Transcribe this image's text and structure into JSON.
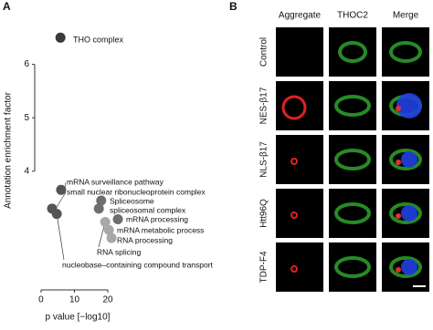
{
  "panel_labels": [
    "A",
    "B"
  ],
  "chart_data": {
    "type": "scatter",
    "x_label": "p value [−log10]",
    "y_label": "Annotation enrichment factor",
    "labels": [
      "THO complex",
      "mRNA surveillance pathway",
      "small nuclear ribonucleoprotein complex",
      "Spliceosome",
      "spliceosomal complex",
      "mRNA processing",
      "RNA splicing",
      "mRNA metabolic process",
      "RNA processing",
      "nucleobase–containing compound transport"
    ],
    "x": [
      5.8,
      6,
      3.3,
      18,
      17.3,
      23,
      19.2,
      20.3,
      21.1,
      4.7
    ],
    "values": [
      6.5,
      3.65,
      3.3,
      3.45,
      3.3,
      3.1,
      3.05,
      2.9,
      2.75,
      3.2
    ],
    "colors": [
      "#3a3a3a",
      "#555555",
      "#555555",
      "#6e6e6e",
      "#6e6e6e",
      "#6e6e6e",
      "#a8a8a8",
      "#a8a8a8",
      "#a8a8a8",
      "#555555"
    ],
    "xlim": [
      -3,
      26
    ],
    "xticks": [
      0,
      10,
      20
    ],
    "ylim": [
      2,
      7
    ],
    "yticks": [
      4,
      5,
      6
    ]
  },
  "panel_b": {
    "columns": [
      "Aggregate",
      "THOC2",
      "Merge"
    ],
    "rows": [
      "Control",
      "NES-β17",
      "NLS-β17",
      "Htt96Q",
      "TDP-F4"
    ]
  }
}
